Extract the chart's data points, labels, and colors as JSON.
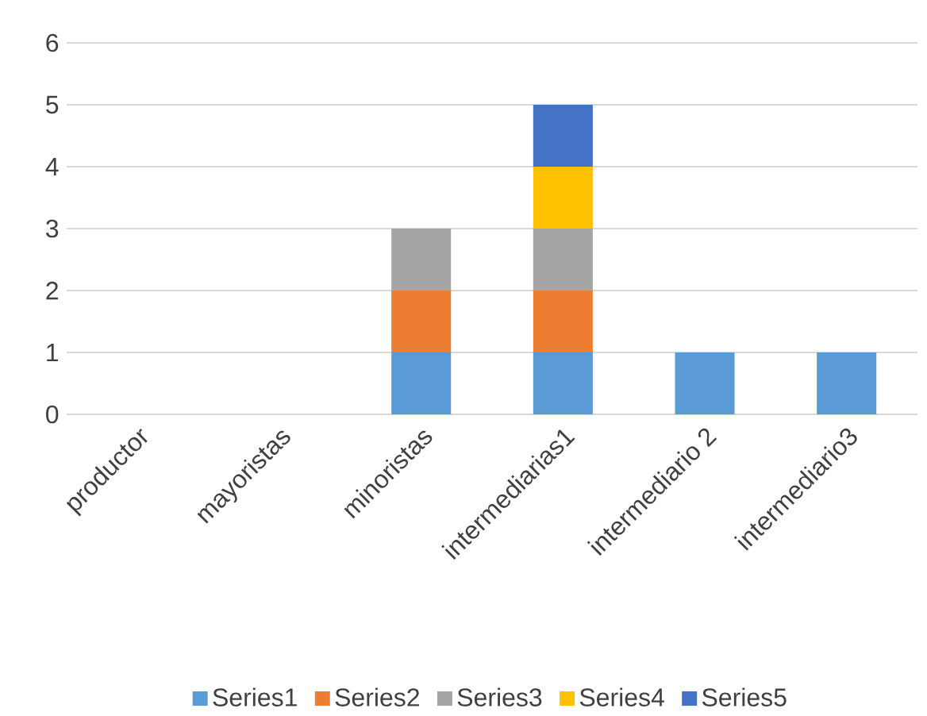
{
  "chart_data": {
    "type": "bar",
    "stacked": true,
    "categories": [
      "productor",
      "mayoristas",
      "minoristas",
      "intermediarias1",
      "intermediario 2",
      "intermediario3"
    ],
    "series": [
      {
        "name": "Series1",
        "color": "#5b9bd5",
        "values": [
          null,
          null,
          1,
          1,
          1,
          1
        ]
      },
      {
        "name": "Series2",
        "color": "#ed7d31",
        "values": [
          null,
          null,
          1,
          1,
          null,
          null
        ]
      },
      {
        "name": "Series3",
        "color": "#a5a5a5",
        "values": [
          null,
          null,
          1,
          1,
          null,
          null
        ]
      },
      {
        "name": "Series4",
        "color": "#ffc000",
        "values": [
          null,
          null,
          null,
          1,
          null,
          null
        ]
      },
      {
        "name": "Series5",
        "color": "#4472c4",
        "values": [
          null,
          null,
          null,
          1,
          null,
          null
        ]
      }
    ],
    "ylim": [
      0,
      6
    ],
    "yticks": [
      0,
      1,
      2,
      3,
      4,
      5,
      6
    ],
    "grid": "y",
    "legend": "bottom"
  }
}
